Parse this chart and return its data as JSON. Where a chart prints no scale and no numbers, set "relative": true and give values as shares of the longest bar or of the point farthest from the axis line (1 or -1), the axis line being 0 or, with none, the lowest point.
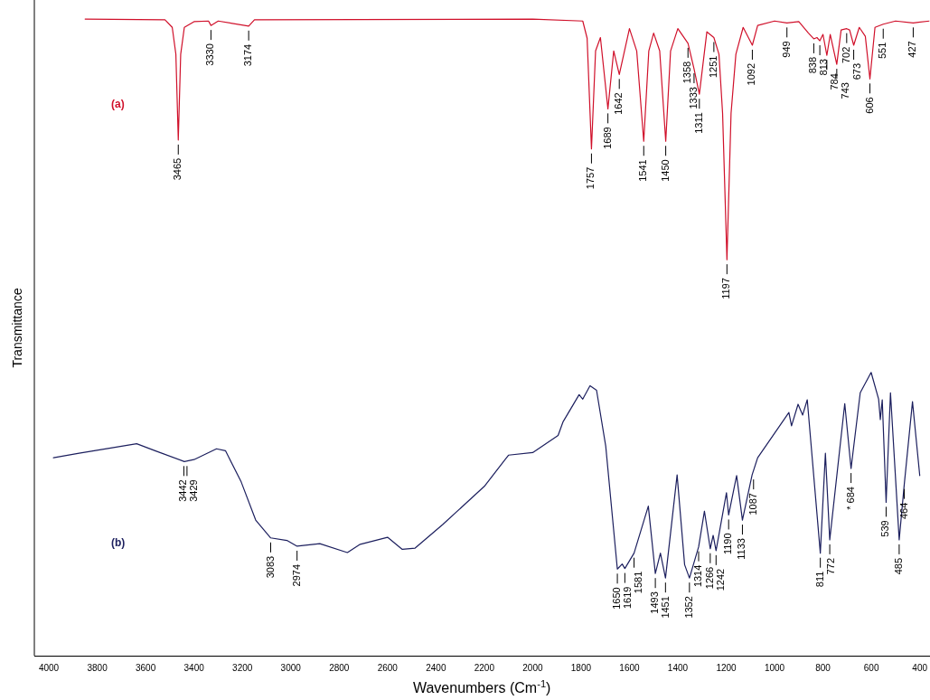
{
  "chart_data": {
    "type": "line",
    "xlabel": "Wavenumbers (Cm$^{-1}$)",
    "ylabel": "Transmittance",
    "relative": true,
    "legend": false,
    "marker": "none",
    "line_style": "solid",
    "xlim": [
      4060,
      360
    ],
    "xticks": [
      4000,
      3800,
      3600,
      3400,
      3200,
      3000,
      2800,
      2600,
      2400,
      2200,
      2000,
      1800,
      1600,
      1400,
      1200,
      1000,
      800,
      600,
      400
    ],
    "series": [
      {
        "name": "(a)",
        "color": "#d0102a",
        "x": [
          3850,
          3520,
          3490,
          3475,
          3465,
          3455,
          3440,
          3400,
          3340,
          3330,
          3300,
          3174,
          3150,
          2000,
          1793,
          1775,
          1757,
          1740,
          1720,
          1689,
          1665,
          1642,
          1600,
          1570,
          1541,
          1520,
          1500,
          1475,
          1450,
          1430,
          1400,
          1358,
          1333,
          1311,
          1280,
          1251,
          1230,
          1215,
          1197,
          1180,
          1160,
          1130,
          1092,
          1070,
          1000,
          949,
          900,
          860,
          838,
          825,
          813,
          800,
          784,
          770,
          743,
          725,
          702,
          690,
          673,
          650,
          625,
          606,
          585,
          551,
          500,
          427,
          360
        ],
        "values": [
          1.0,
          0.999,
          0.987,
          0.945,
          0.81,
          0.945,
          0.987,
          0.996,
          0.997,
          0.99,
          0.997,
          0.989,
          0.999,
          1.0,
          0.997,
          0.97,
          0.796,
          0.95,
          0.971,
          0.859,
          0.95,
          0.913,
          0.985,
          0.95,
          0.808,
          0.95,
          0.978,
          0.95,
          0.808,
          0.95,
          0.985,
          0.962,
          0.922,
          0.882,
          0.98,
          0.971,
          0.945,
          0.852,
          0.622,
          0.852,
          0.945,
          0.987,
          0.959,
          0.99,
          0.997,
          0.994,
          0.996,
          0.978,
          0.969,
          0.971,
          0.966,
          0.976,
          0.943,
          0.976,
          0.929,
          0.983,
          0.985,
          0.983,
          0.959,
          0.987,
          0.973,
          0.906,
          0.987,
          0.992,
          0.997,
          0.994,
          0.997
        ]
      },
      {
        "name": "(b)",
        "color": "#1c1f5e",
        "x": [
          3981,
          3875,
          3750,
          3637,
          3561,
          3440,
          3400,
          3307,
          3270,
          3205,
          3145,
          3083,
          3016,
          2974,
          2880,
          2766,
          2713,
          2600,
          2539,
          2486,
          2372,
          2200,
          2100,
          2000,
          1895,
          1875,
          1808,
          1793,
          1763,
          1736,
          1698,
          1650,
          1630,
          1619,
          1581,
          1522,
          1493,
          1472,
          1451,
          1403,
          1372,
          1352,
          1314,
          1290,
          1266,
          1254,
          1242,
          1199,
          1190,
          1157,
          1133,
          1093,
          1070,
          941,
          930,
          903,
          884,
          865,
          811,
          790,
          772,
          710,
          684,
          646,
          601,
          570,
          563,
          555,
          539,
          521,
          485,
          464,
          430,
          400
        ],
        "values": [
          0.311,
          0.318,
          0.326,
          0.333,
          0.322,
          0.305,
          0.308,
          0.325,
          0.322,
          0.273,
          0.213,
          0.185,
          0.181,
          0.172,
          0.176,
          0.162,
          0.175,
          0.186,
          0.167,
          0.169,
          0.206,
          0.266,
          0.315,
          0.319,
          0.346,
          0.367,
          0.41,
          0.403,
          0.424,
          0.417,
          0.329,
          0.136,
          0.144,
          0.137,
          0.161,
          0.235,
          0.129,
          0.161,
          0.122,
          0.284,
          0.143,
          0.122,
          0.171,
          0.227,
          0.168,
          0.189,
          0.165,
          0.256,
          0.221,
          0.283,
          0.213,
          0.284,
          0.311,
          0.382,
          0.361,
          0.395,
          0.378,
          0.402,
          0.161,
          0.318,
          0.182,
          0.396,
          0.294,
          0.413,
          0.445,
          0.403,
          0.371,
          0.402,
          0.241,
          0.413,
          0.182,
          0.269,
          0.399,
          0.283
        ]
      }
    ],
    "annotations": [
      {
        "text": "3465",
        "x": 3465,
        "y": 0.81
      },
      {
        "text": "3330",
        "x": 3330,
        "y": 0.99
      },
      {
        "text": "3174",
        "x": 3174,
        "y": 0.989
      },
      {
        "text": "1757",
        "x": 1757,
        "y": 0.796
      },
      {
        "text": "1689",
        "x": 1689,
        "y": 0.859
      },
      {
        "text": "1642",
        "x": 1642,
        "y": 0.913
      },
      {
        "text": "1541",
        "x": 1541,
        "y": 0.808
      },
      {
        "text": "1450",
        "x": 1450,
        "y": 0.808
      },
      {
        "text": "1358",
        "x": 1358,
        "y": 0.962
      },
      {
        "text": "1333",
        "x": 1333,
        "y": 0.922
      },
      {
        "text": "1311",
        "x": 1311,
        "y": 0.882
      },
      {
        "text": "1251",
        "x": 1251,
        "y": 0.971
      },
      {
        "text": "1197",
        "x": 1197,
        "y": 0.622
      },
      {
        "text": "1092",
        "x": 1092,
        "y": 0.959
      },
      {
        "text": "949",
        "x": 949,
        "y": 0.994
      },
      {
        "text": "838",
        "x": 838,
        "y": 0.969
      },
      {
        "text": "813",
        "x": 813,
        "y": 0.966
      },
      {
        "text": "784",
        "x": 784,
        "y": 0.943
      },
      {
        "text": "743",
        "x": 743,
        "y": 0.929
      },
      {
        "text": "702",
        "x": 702,
        "y": 0.985
      },
      {
        "text": "673",
        "x": 673,
        "y": 0.959
      },
      {
        "text": "606",
        "x": 606,
        "y": 0.906
      },
      {
        "text": "551",
        "x": 551,
        "y": 0.992
      },
      {
        "text": "427",
        "x": 427,
        "y": 0.994
      },
      {
        "text": "3442",
        "x": 3442,
        "y": 0.305
      },
      {
        "text": "3429",
        "x": 3429,
        "y": 0.305
      },
      {
        "text": "3083",
        "x": 3083,
        "y": 0.185
      },
      {
        "text": "2974",
        "x": 2974,
        "y": 0.172
      },
      {
        "text": "1650",
        "x": 1650,
        "y": 0.136
      },
      {
        "text": "1619",
        "x": 1619,
        "y": 0.137
      },
      {
        "text": "1581",
        "x": 1581,
        "y": 0.161
      },
      {
        "text": "1493",
        "x": 1493,
        "y": 0.129
      },
      {
        "text": "1451",
        "x": 1451,
        "y": 0.122
      },
      {
        "text": "1352",
        "x": 1352,
        "y": 0.122
      },
      {
        "text": "1314",
        "x": 1314,
        "y": 0.171
      },
      {
        "text": "1266",
        "x": 1266,
        "y": 0.168
      },
      {
        "text": "1242",
        "x": 1242,
        "y": 0.165
      },
      {
        "text": "1190",
        "x": 1190,
        "y": 0.221
      },
      {
        "text": "1133",
        "x": 1133,
        "y": 0.213
      },
      {
        "text": "1087",
        "x": 1087,
        "y": 0.284
      },
      {
        "text": "811",
        "x": 811,
        "y": 0.161
      },
      {
        "text": "772",
        "x": 772,
        "y": 0.182
      },
      {
        "text": "* 684",
        "x": 684,
        "y": 0.294
      },
      {
        "text": "539",
        "x": 539,
        "y": 0.241
      },
      {
        "text": "485",
        "x": 485,
        "y": 0.182
      },
      {
        "text": "464",
        "x": 464,
        "y": 0.269
      }
    ]
  }
}
